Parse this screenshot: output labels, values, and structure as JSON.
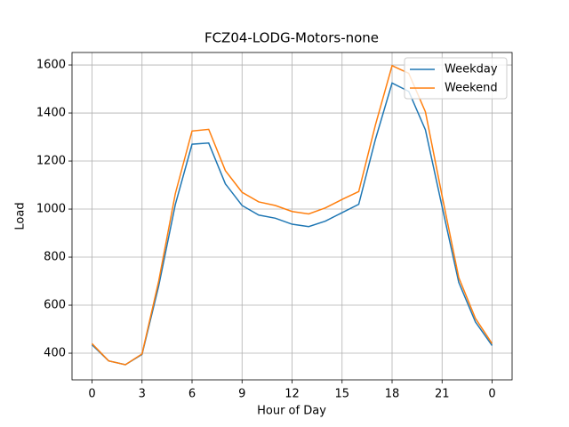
{
  "chart_data": {
    "type": "line",
    "title": "FCZ04-LODG-Motors-none",
    "x_label": "Hour of Day",
    "y_label": "Load",
    "x": [
      0,
      1,
      2,
      3,
      4,
      5,
      6,
      7,
      8,
      9,
      10,
      11,
      12,
      13,
      14,
      15,
      16,
      17,
      18,
      19,
      20,
      21,
      22,
      23,
      24
    ],
    "series": [
      {
        "name": "Weekday",
        "color": "#1f77b4",
        "values": [
          435,
          368,
          352,
          395,
          680,
          1020,
          1270,
          1275,
          1105,
          1015,
          975,
          962,
          937,
          927,
          950,
          985,
          1020,
          1290,
          1525,
          1490,
          1330,
          1010,
          695,
          530,
          432
        ]
      },
      {
        "name": "Weekend",
        "color": "#ff7f0e",
        "values": [
          440,
          368,
          352,
          397,
          700,
          1065,
          1325,
          1332,
          1160,
          1070,
          1030,
          1015,
          990,
          980,
          1005,
          1040,
          1073,
          1350,
          1597,
          1565,
          1405,
          1055,
          715,
          545,
          440
        ]
      }
    ],
    "xlim": [
      -1.2,
      25.2
    ],
    "ylim": [
      289,
      1652
    ],
    "xticks": [
      0,
      3,
      6,
      9,
      12,
      15,
      18,
      21,
      {
        "value": 24,
        "label": "0"
      }
    ],
    "yticks": [
      400,
      600,
      800,
      1000,
      1200,
      1400,
      1600
    ],
    "grid": true,
    "legend": "upper-right"
  }
}
